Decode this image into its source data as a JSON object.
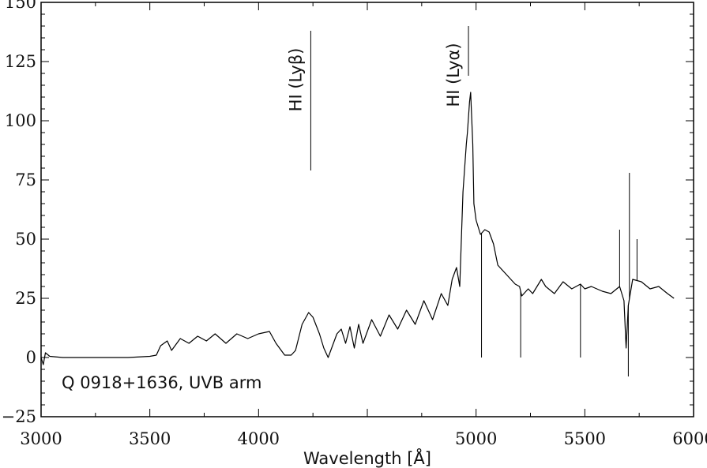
{
  "chart_data": {
    "type": "line",
    "title": "",
    "xlabel": "Wavelength [Å]",
    "ylabel": "",
    "xlim": [
      3000,
      6000
    ],
    "ylim": [
      -25,
      150
    ],
    "x_ticks": [
      3000,
      3500,
      4000,
      5000,
      5500,
      6000
    ],
    "x_tick_labels": [
      "3000",
      "3500",
      "4000",
      "5000",
      "5500",
      "6000"
    ],
    "y_ticks": [
      -25,
      0,
      25,
      50,
      75,
      100,
      125,
      150
    ],
    "y_tick_labels": [
      "−25",
      "0",
      "25",
      "50",
      "75",
      "100",
      "125",
      "150"
    ],
    "grid": false,
    "line_color": "#000000",
    "annotation_text": "Q 0918+1636, UVB arm",
    "line_markers": [
      {
        "label": "HI (Lyβ)",
        "x": 4240,
        "y_top": 138,
        "y_bottom": 79
      },
      {
        "label": "HI (Lyα)",
        "x": 4965,
        "y_top": 140,
        "y_bottom": 119
      }
    ],
    "series": [
      {
        "x": [
          3000,
          3010,
          3020,
          3040,
          3100,
          3200,
          3300,
          3400,
          3500,
          3530,
          3550,
          3580,
          3600,
          3640,
          3680,
          3720,
          3760,
          3800,
          3850,
          3900,
          3950,
          4000,
          4050,
          4080,
          4120,
          4150,
          4170,
          4200,
          4230,
          4250,
          4280,
          4300,
          4320,
          4360,
          4380,
          4400,
          4420,
          4440,
          4460,
          4480,
          4520,
          4560,
          4600,
          4640,
          4680,
          4720,
          4760,
          4800,
          4840,
          4870,
          4890,
          4910,
          4925,
          4940,
          4955,
          4960,
          4970,
          4975,
          4985,
          4990,
          5000,
          5020,
          5040,
          5060,
          5080,
          5100,
          5140,
          5180,
          5200,
          5210,
          5240,
          5260,
          5300,
          5320,
          5360,
          5400,
          5440,
          5480,
          5500,
          5530,
          5580,
          5620,
          5660,
          5680,
          5690,
          5700,
          5720,
          5760,
          5800,
          5840,
          5880,
          5910
        ],
        "y": [
          0,
          -3,
          2,
          0.5,
          0,
          0,
          0,
          0,
          0.5,
          1,
          5,
          7,
          3,
          8,
          6,
          9,
          7,
          10,
          6,
          10,
          8,
          10,
          11,
          6,
          1,
          1,
          3,
          14,
          19,
          17,
          10,
          4,
          0,
          10,
          12,
          6,
          13,
          4,
          14,
          6,
          16,
          9,
          18,
          12,
          20,
          14,
          24,
          16,
          27,
          22,
          33,
          38,
          30,
          70,
          90,
          95,
          108,
          112,
          90,
          65,
          58,
          52,
          54,
          53,
          48,
          39,
          35,
          31,
          30,
          26,
          29,
          27,
          33,
          30,
          27,
          32,
          29,
          31,
          29,
          30,
          28,
          27,
          30,
          24,
          4,
          22,
          33,
          32,
          29,
          30,
          27,
          25
        ]
      }
    ],
    "spikes": [
      {
        "x": 5025,
        "y": 0
      },
      {
        "x": 5205,
        "y": 0
      },
      {
        "x": 5480,
        "y": 0
      },
      {
        "x": 5700,
        "y": -8
      },
      {
        "x": 5660,
        "y": 54
      },
      {
        "x": 5705,
        "y": 78
      },
      {
        "x": 5740,
        "y": 50
      }
    ]
  }
}
